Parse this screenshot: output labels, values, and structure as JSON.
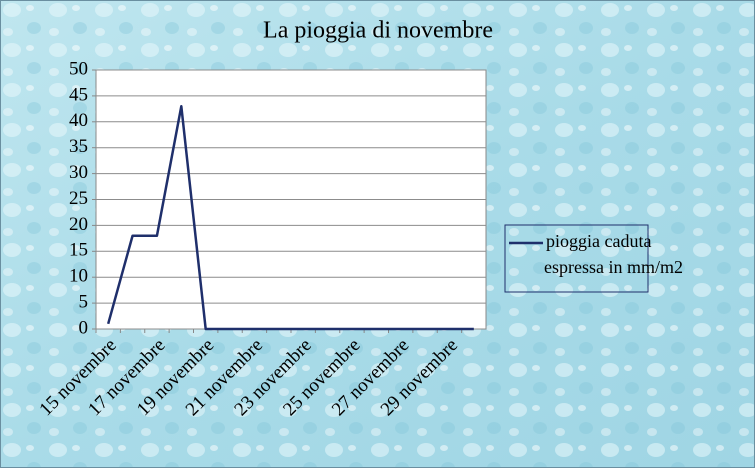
{
  "chart_data": {
    "type": "line",
    "title": "La pioggia di novembre",
    "categories": [
      "15 novembre",
      null,
      "17 novembre",
      null,
      "19 novembre",
      null,
      "21 novembre",
      null,
      "23 novembre",
      null,
      "25 novembre",
      null,
      "27 novembre",
      null,
      "29 novembre",
      null
    ],
    "series": [
      {
        "name": "pioggia caduta espressa in mm/m2",
        "color": "#1f2f6b",
        "values": [
          1,
          18,
          18,
          43,
          0,
          0,
          0,
          0,
          0,
          0,
          0,
          0,
          0,
          0,
          0,
          0
        ]
      }
    ],
    "ylim": [
      0,
      50
    ],
    "yticks": [
      0,
      5,
      10,
      15,
      20,
      25,
      30,
      35,
      40,
      45,
      50
    ],
    "grid": true,
    "legend": "right"
  }
}
